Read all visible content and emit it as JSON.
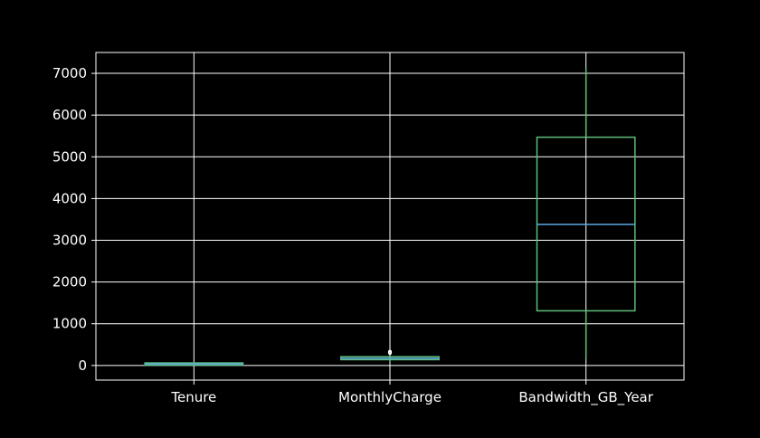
{
  "chart_data": {
    "type": "box",
    "categories": [
      "Tenure",
      "MonthlyCharge",
      "Bandwidth_GB_Year"
    ],
    "boxes": [
      {
        "name": "Tenure",
        "whisker_low": 1,
        "q1": 8,
        "median": 35,
        "q3": 61,
        "whisker_high": 72,
        "outliers": []
      },
      {
        "name": "MonthlyCharge",
        "whisker_low": 80,
        "q1": 140,
        "median": 170,
        "q3": 210,
        "whisker_high": 290,
        "outliers": [
          300,
          310,
          320,
          330
        ]
      },
      {
        "name": "Bandwidth_GB_Year",
        "whisker_low": 160,
        "q1": 1310,
        "median": 3380,
        "q3": 5470,
        "whisker_high": 7120,
        "outliers": []
      }
    ],
    "ylim": [
      -350,
      7500
    ],
    "yticks": [
      0,
      1000,
      2000,
      3000,
      4000,
      5000,
      6000,
      7000
    ],
    "grid": true,
    "title": "",
    "xlabel": "",
    "ylabel": "",
    "colors": {
      "background": "#000000",
      "axes": "#ffffff",
      "grid": "#ffffff",
      "text": "#ffffff",
      "box": "#5fbf7a",
      "whisker": "#5fbf7a",
      "median": "#5aa9e6",
      "flier": "#ffffff"
    }
  }
}
